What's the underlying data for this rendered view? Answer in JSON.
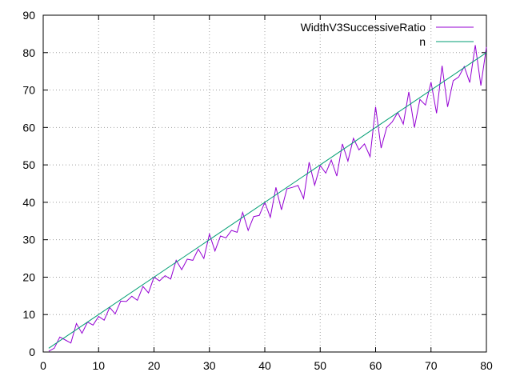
{
  "chart_data": {
    "type": "line",
    "title": "",
    "xlabel": "",
    "ylabel": "",
    "xlim": [
      0,
      80
    ],
    "ylim": [
      0,
      90
    ],
    "xticks": [
      0,
      10,
      20,
      30,
      40,
      50,
      60,
      70,
      80
    ],
    "yticks": [
      0,
      10,
      20,
      30,
      40,
      50,
      60,
      70,
      80,
      90
    ],
    "grid": true,
    "legend_position": "top-right",
    "series": [
      {
        "name": "WidthV3SuccessiveRatio",
        "color": "#9400d3",
        "x": [
          1,
          2,
          3,
          4,
          5,
          6,
          7,
          8,
          9,
          10,
          11,
          12,
          13,
          14,
          15,
          16,
          17,
          18,
          19,
          20,
          21,
          22,
          23,
          24,
          25,
          26,
          27,
          28,
          29,
          30,
          31,
          32,
          33,
          34,
          35,
          36,
          37,
          38,
          39,
          40,
          41,
          42,
          43,
          44,
          45,
          46,
          47,
          48,
          49,
          50,
          51,
          52,
          53,
          54,
          55,
          56,
          57,
          58,
          59,
          60,
          61,
          62,
          63,
          64,
          65,
          66,
          67,
          68,
          69,
          70,
          71,
          72,
          73,
          74,
          75,
          76,
          77,
          78,
          79,
          80
        ],
        "y": [
          0.2,
          1.0,
          4.0,
          3.2,
          2.4,
          7.6,
          5.0,
          8.0,
          7.2,
          9.5,
          8.5,
          11.9,
          10.2,
          13.6,
          13.5,
          14.9,
          13.8,
          17.5,
          15.8,
          20.0,
          19.0,
          20.4,
          19.5,
          24.5,
          22.0,
          24.8,
          24.5,
          27.5,
          25.0,
          31.5,
          27.0,
          31.0,
          30.5,
          32.5,
          32.0,
          37.3,
          32.5,
          36.2,
          36.5,
          40.0,
          36.0,
          44.0,
          38.0,
          43.6,
          44.0,
          44.5,
          41.0,
          50.7,
          44.6,
          49.8,
          47.8,
          51.3,
          47.0,
          55.6,
          51.0,
          57.1,
          54.0,
          55.6,
          52.2,
          65.5,
          54.5,
          60.0,
          61.5,
          64.0,
          60.9,
          69.5,
          60.0,
          67.5,
          66.0,
          72.1,
          63.8,
          76.5,
          65.5,
          72.5,
          73.5,
          76.3,
          72.0,
          82.0,
          71.2,
          81.5
        ]
      },
      {
        "name": "n",
        "color": "#009e73",
        "x": [
          1,
          80
        ],
        "y": [
          1,
          80
        ]
      }
    ]
  }
}
